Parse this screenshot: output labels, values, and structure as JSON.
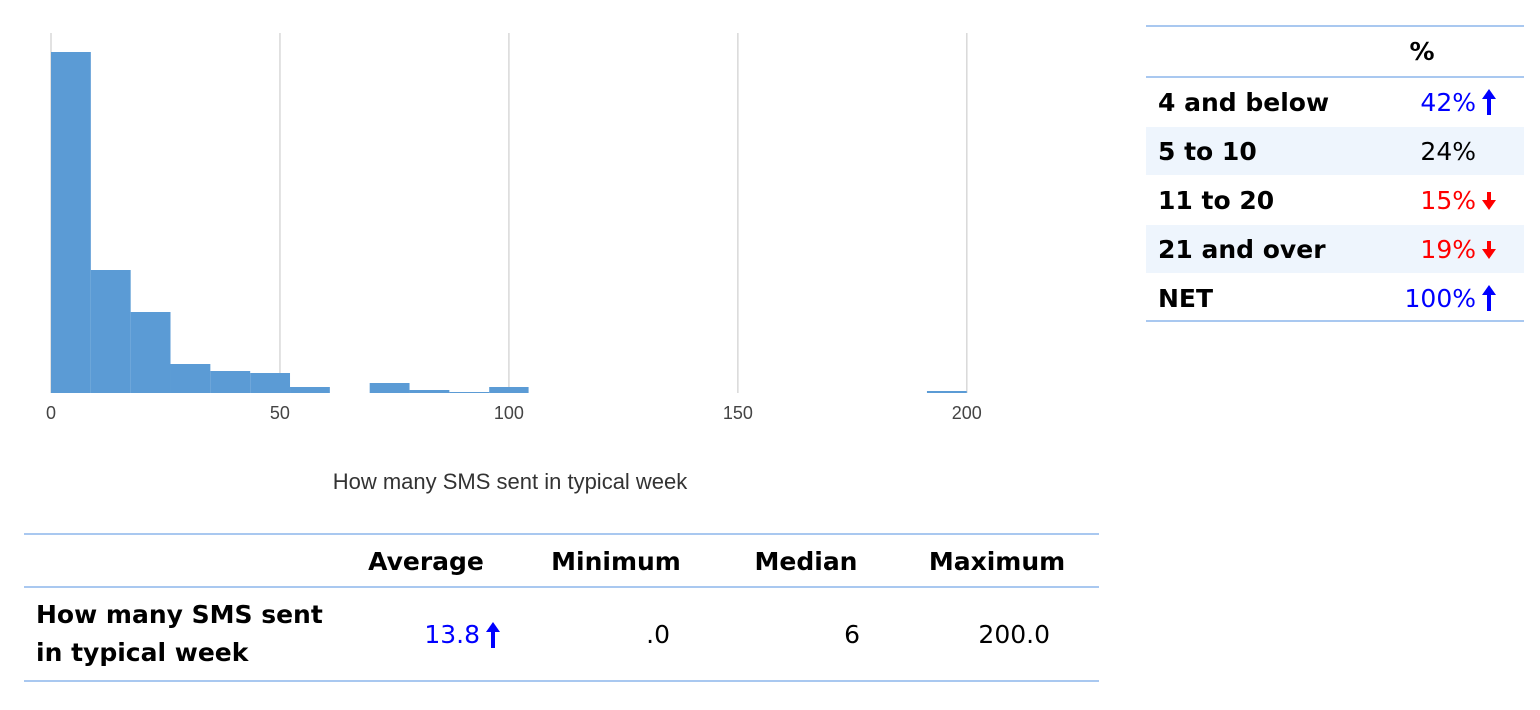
{
  "chart_data": {
    "type": "histogram",
    "x_label": "How many SMS sent in typical week",
    "bins": [
      0,
      8.7,
      17.4,
      26.1,
      34.8,
      43.5,
      52.2,
      60.9,
      69.6,
      78.3,
      87,
      95.7,
      104.3,
      113,
      121.7,
      130.4,
      139.1,
      147.8,
      156.5,
      165.2,
      173.9,
      182.6,
      191.3,
      200
    ],
    "values": [
      341,
      123,
      81,
      29,
      22,
      20,
      6,
      0,
      10,
      3,
      1,
      6,
      0,
      0,
      0,
      0,
      0,
      0,
      0,
      0,
      0,
      0,
      2
    ],
    "color": "#5b9bd5",
    "xlim": [
      0,
      228
    ],
    "xticks": [
      0,
      50,
      100,
      150,
      200
    ],
    "ylim": [
      0,
      360
    ],
    "grid": true
  },
  "summary_table": {
    "header": "%",
    "rows": [
      {
        "label": "4 and below",
        "value": "42%",
        "trend": "up",
        "color": "#0000ff"
      },
      {
        "label": "5 to 10",
        "value": "24%",
        "color": "#000000"
      },
      {
        "label": "11 to 20",
        "value": "15%",
        "trend": "down",
        "color": "#ff0000"
      },
      {
        "label": "21 and over",
        "value": "19%",
        "trend": "down",
        "color": "#ff0000"
      },
      {
        "label": "NET",
        "value": "100%",
        "trend": "up",
        "color": "#0000ff"
      }
    ]
  },
  "stats_table": {
    "columns": [
      "Average",
      "Minimum",
      "Median",
      "Maximum"
    ],
    "rows": [
      {
        "label": "How many SMS sent in typical week",
        "values": [
          "13.8",
          ".0",
          "6",
          "200.0"
        ],
        "flags": [
          {
            "index": 0,
            "trend": "up",
            "color": "#0000ff"
          }
        ]
      }
    ]
  }
}
